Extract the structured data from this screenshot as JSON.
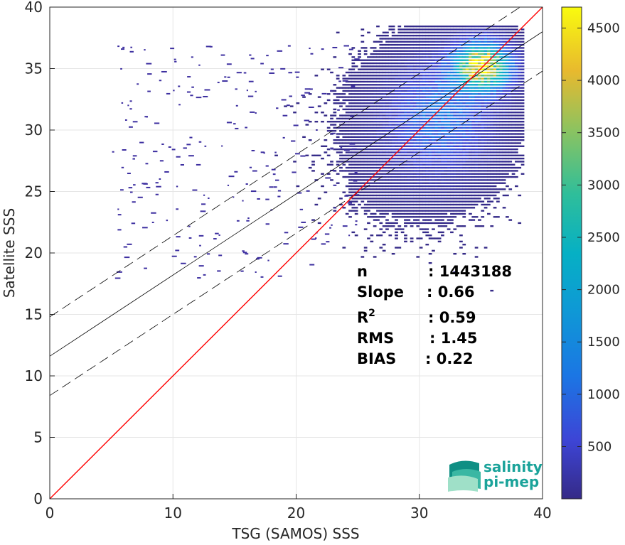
{
  "chart_data": {
    "type": "heatmap",
    "xlabel": "TSG (SAMOS) SSS",
    "ylabel": "Satellite SSS",
    "xlim": [
      0,
      40
    ],
    "ylim": [
      0,
      40
    ],
    "x_ticks": [
      0,
      10,
      20,
      30,
      40
    ],
    "y_ticks": [
      0,
      5,
      10,
      15,
      20,
      25,
      30,
      35,
      40
    ],
    "grid": true,
    "colormap": "parula",
    "colorbar": {
      "min": 1,
      "max": 4700,
      "ticks": [
        500,
        1000,
        1500,
        2000,
        2500,
        3000,
        3500,
        4000,
        4500
      ]
    },
    "density_clusters": [
      {
        "x": 35.0,
        "y": 35.0,
        "sx": 1.4,
        "sy": 1.2,
        "peak": 4600
      },
      {
        "x": 32.0,
        "y": 31.5,
        "sx": 2.5,
        "sy": 2.8,
        "peak": 900
      },
      {
        "x": 30.0,
        "y": 29.5,
        "sx": 3.0,
        "sy": 3.2,
        "peak": 300
      }
    ],
    "lines": {
      "one_to_one": {
        "slope": 1.0,
        "intercept": 0.0,
        "color": "#ff0000"
      },
      "regression": {
        "slope": 0.66,
        "intercept": 11.6,
        "color": "#000000"
      },
      "upper_bound": {
        "slope": 0.66,
        "intercept": 14.8,
        "style": "dashed"
      },
      "lower_bound": {
        "slope": 0.66,
        "intercept": 8.4,
        "style": "dashed"
      }
    },
    "stats": [
      {
        "label": "n",
        "sup": "",
        "value": ": 1443188"
      },
      {
        "label": "Slope",
        "sup": "",
        "value": ": 0.66"
      },
      {
        "label": "R",
        "sup": "2",
        "value": ": 0.59"
      },
      {
        "label": "RMS",
        "sup": "",
        "value": ": 1.45"
      },
      {
        "label": "BIAS",
        "sup": "",
        "value": ": 0.22"
      }
    ]
  },
  "logo": {
    "line1": "salinity",
    "line2": "pi-mep"
  }
}
